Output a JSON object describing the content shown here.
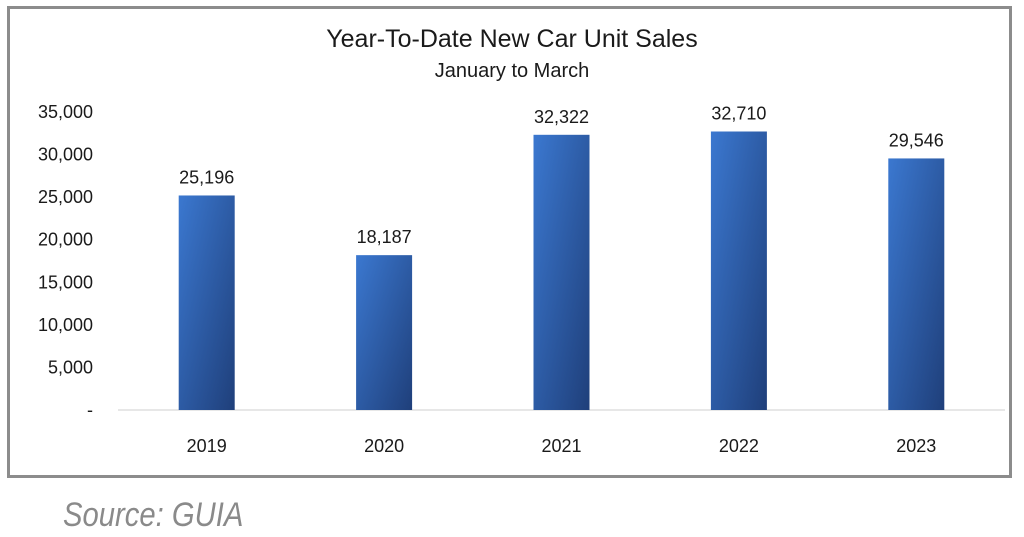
{
  "chart_data": {
    "type": "bar",
    "title": "Year-To-Date New Car Unit Sales",
    "subtitle": "January to March",
    "categories": [
      "2019",
      "2020",
      "2021",
      "2022",
      "2023"
    ],
    "values": [
      25196,
      18187,
      32322,
      32710,
      29546
    ],
    "data_labels": [
      "25,196",
      "18,187",
      "32,322",
      "32,710",
      "29,546"
    ],
    "y_ticks": [
      0,
      5000,
      10000,
      15000,
      20000,
      25000,
      30000,
      35000
    ],
    "y_tick_labels": [
      "-",
      "5,000",
      "10,000",
      "15,000",
      "20,000",
      "25,000",
      "30,000",
      "35,000"
    ],
    "ylim": [
      0,
      35000
    ],
    "grid": false,
    "legend": "none",
    "bar_color_top": "#3b78d0",
    "bar_color_bottom": "#1f3f7a"
  },
  "source": "Source: GUIA"
}
